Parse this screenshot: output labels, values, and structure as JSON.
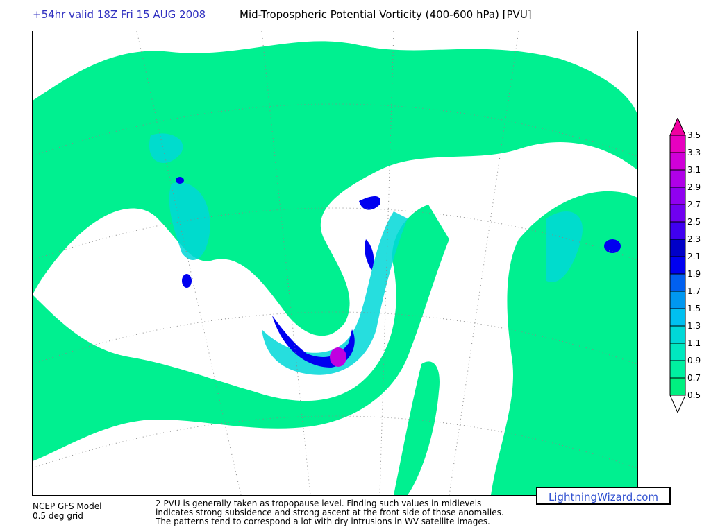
{
  "header": {
    "valid": "+54hr valid 18Z Fri 15 AUG 2008",
    "title": "Mid-Tropospheric Potential Vorticity (400-600 hPa) [PVU]"
  },
  "colorbar": {
    "unit": "PVU",
    "levels": [
      "0.5",
      "0.7",
      "0.9",
      "1.1",
      "1.3",
      "1.5",
      "1.7",
      "1.9",
      "2.1",
      "2.3",
      "2.5",
      "2.7",
      "2.9",
      "3.1",
      "3.3",
      "3.5"
    ],
    "colors": [
      "#00f080",
      "#00f0a0",
      "#00e8c0",
      "#00d8d8",
      "#00c0f0",
      "#0098f0",
      "#0060f0",
      "#0000f0",
      "#0000c8",
      "#4000f0",
      "#7000f0",
      "#9000f0",
      "#b000e8",
      "#d000d8",
      "#e800c0",
      "#f000a0"
    ]
  },
  "footer": {
    "model": "NCEP GFS Model",
    "grid": "0.5 deg grid",
    "note1": "2 PVU is generally taken as tropopause level. Finding such values in midlevels",
    "note2": "indicates strong subsidence and strong ascent at the front side of those anomalies.",
    "note3": "The patterns tend to correspond a lot with dry intrusions in WV satellite images.",
    "brand": "LightningWizard.com"
  }
}
